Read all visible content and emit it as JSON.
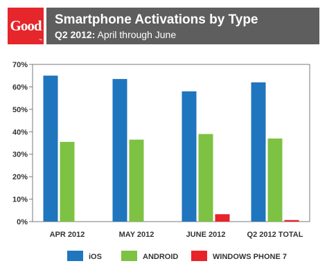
{
  "header": {
    "logo_text": "Good",
    "logo_tm": "™",
    "title": "Smartphone Activations by Type",
    "subtitle_bold": "Q2 2012:",
    "subtitle_rest": " April through June"
  },
  "colors": {
    "logo": "#e5262b",
    "banner": "#5e5e5e",
    "ios": "#1f75be",
    "android": "#7dc242",
    "windows": "#e8232a"
  },
  "chart_data": {
    "type": "bar",
    "categories": [
      "APR 2012",
      "MAY 2012",
      "JUNE 2012",
      "Q2 2012 TOTAL"
    ],
    "series": [
      {
        "name": "iOS",
        "values": [
          65,
          63.5,
          58,
          62
        ]
      },
      {
        "name": "ANDROID",
        "values": [
          35.5,
          36.5,
          39,
          37
        ]
      },
      {
        "name": "WINDOWS PHONE 7",
        "values": [
          0,
          0,
          3.3,
          0.7
        ]
      }
    ],
    "y_ticks": [
      "0%",
      "10%",
      "20%",
      "30%",
      "40%",
      "50%",
      "60%",
      "70%"
    ],
    "ylim": [
      0,
      70
    ],
    "grid": false,
    "legend_position": "bottom",
    "title": "Smartphone Activations by Type",
    "xlabel": "",
    "ylabel": ""
  }
}
